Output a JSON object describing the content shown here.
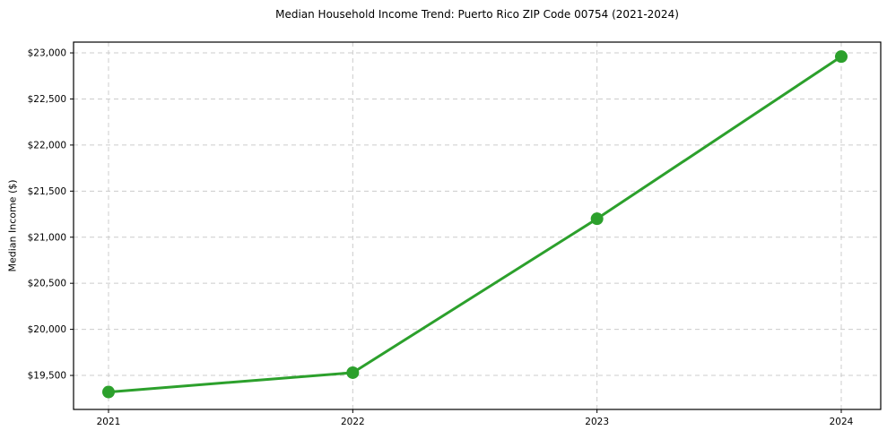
{
  "figure": {
    "background": "#ffffff"
  },
  "chart_data": {
    "type": "line",
    "title": "Median Household Income Trend: Puerto Rico ZIP Code 00754 (2021-2024)",
    "xlabel": "",
    "ylabel": "Median Income ($)",
    "x": [
      2021,
      2022,
      2023,
      2024
    ],
    "x_tick_labels": [
      "2021",
      "2022",
      "2023",
      "2024"
    ],
    "series": [
      {
        "name": "Median Household Income",
        "values": [
          19320,
          19530,
          21200,
          22960
        ]
      }
    ],
    "y_ticks": {
      "values": [
        19500,
        20000,
        20500,
        21000,
        21500,
        22000,
        22500,
        23000
      ],
      "labels": [
        "$19,500",
        "$20,000",
        "$20,500",
        "$21,000",
        "$21,500",
        "$22,000",
        "$22,500",
        "$23,000"
      ]
    },
    "ylim": [
      19131,
      23117
    ],
    "grid": true,
    "grid_style": "dashed",
    "legend": "none",
    "colors": {
      "line": "#2ca02c",
      "marker": "#2ca02c",
      "grid": "#cccccc",
      "spine": "#000000",
      "text": "#000000"
    },
    "marker": "circle",
    "marker_radius": 7,
    "line_width": 3
  }
}
